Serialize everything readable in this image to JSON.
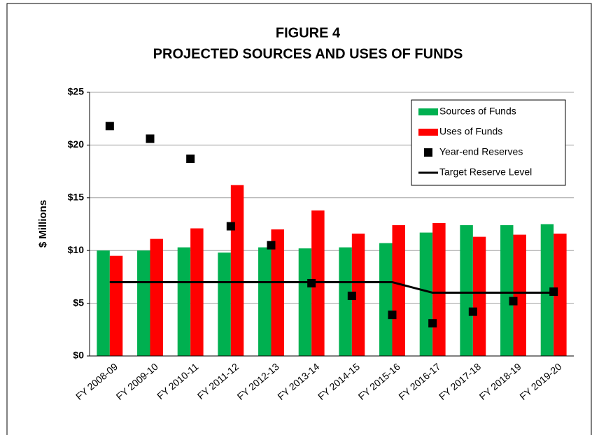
{
  "chart_data": {
    "type": "bar",
    "title": "FIGURE 4",
    "subtitle": "PROJECTED SOURCES AND USES OF FUNDS",
    "y_label": "$ Millions",
    "categories": [
      "FY 2008-09",
      "FY 2009-10",
      "FY 2010-11",
      "FY 2011-12",
      "FY 2012-13",
      "FY 2013-14",
      "FY 2014-15",
      "FY 2015-16",
      "FY 2016-17",
      "FY 2017-18",
      "FY 2018-19",
      "FY 2019-20"
    ],
    "series": [
      {
        "name": "Sources of Funds",
        "type": "bar",
        "color": "#00b050",
        "values": [
          10.0,
          10.0,
          10.3,
          9.8,
          10.3,
          10.2,
          10.3,
          10.7,
          11.7,
          12.4,
          12.4,
          12.5
        ]
      },
      {
        "name": "Uses of Funds",
        "type": "bar",
        "color": "#ff0000",
        "values": [
          9.5,
          11.1,
          12.1,
          16.2,
          12.0,
          13.8,
          11.6,
          12.4,
          12.6,
          11.3,
          11.5,
          11.6
        ]
      },
      {
        "name": "Year-end Reserves",
        "type": "scatter",
        "color": "#000000",
        "values": [
          21.8,
          20.6,
          18.7,
          12.3,
          10.5,
          6.9,
          5.7,
          3.9,
          3.1,
          4.2,
          5.2,
          6.1
        ]
      },
      {
        "name": "Target Reserve Level",
        "type": "line",
        "color": "#000000",
        "values": [
          7,
          7,
          7,
          7,
          7,
          7,
          7,
          7,
          6,
          6,
          6,
          6
        ]
      }
    ],
    "ylim": [
      0,
      25
    ],
    "yticks": [
      {
        "value": 0,
        "label": "$0"
      },
      {
        "value": 5,
        "label": "$5"
      },
      {
        "value": 10,
        "label": "$10"
      },
      {
        "value": 15,
        "label": "$15"
      },
      {
        "value": 20,
        "label": "$20"
      },
      {
        "value": 25,
        "label": "$25"
      }
    ],
    "grid": true,
    "legend": "upper right"
  }
}
